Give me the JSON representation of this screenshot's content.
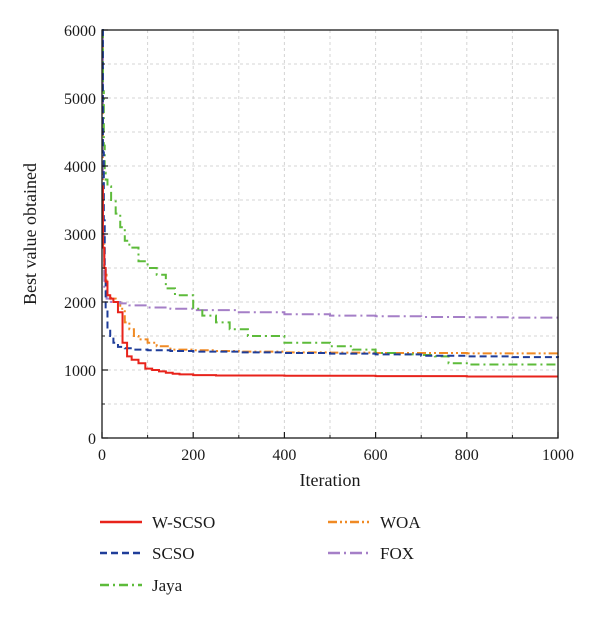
{
  "chart_data": {
    "type": "line",
    "title": "",
    "xlabel": "Iteration",
    "ylabel": "Best value obtained",
    "xlim": [
      0,
      1000
    ],
    "ylim": [
      0,
      6000
    ],
    "xticks": [
      0,
      200,
      400,
      600,
      800,
      1000
    ],
    "yticks": [
      0,
      1000,
      2000,
      3000,
      4000,
      5000,
      6000
    ],
    "grid": true,
    "legend_position": "bottom",
    "series": [
      {
        "name": "W-SCSO",
        "color": "#e8231b",
        "dash": "solid",
        "x": [
          0,
          2,
          5,
          8,
          12,
          18,
          25,
          35,
          45,
          55,
          65,
          80,
          95,
          110,
          125,
          140,
          155,
          170,
          200,
          250,
          300,
          400,
          500,
          600,
          700,
          800,
          900,
          1000
        ],
        "y": [
          3700,
          2800,
          2500,
          2300,
          2100,
          2050,
          2000,
          1850,
          1400,
          1200,
          1150,
          1100,
          1020,
          1000,
          980,
          960,
          945,
          935,
          925,
          920,
          920,
          915,
          915,
          910,
          910,
          905,
          905,
          905
        ]
      },
      {
        "name": "SCSO",
        "color": "#1f3d99",
        "dash": "dashed",
        "x": [
          0,
          2,
          4,
          6,
          8,
          12,
          18,
          25,
          35,
          50,
          70,
          100,
          150,
          200,
          300,
          400,
          500,
          600,
          700,
          800,
          900,
          1000
        ],
        "y": [
          6000,
          4200,
          3200,
          2500,
          1900,
          1600,
          1500,
          1400,
          1340,
          1320,
          1300,
          1290,
          1280,
          1270,
          1260,
          1250,
          1240,
          1230,
          1210,
          1200,
          1190,
          1180
        ]
      },
      {
        "name": "Jaya",
        "color": "#5dbb3a",
        "dash": "dashdot",
        "x": [
          0,
          2,
          4,
          6,
          8,
          12,
          20,
          30,
          40,
          50,
          60,
          80,
          100,
          120,
          140,
          160,
          180,
          200,
          220,
          250,
          280,
          320,
          400,
          500,
          550,
          600,
          650,
          700,
          730,
          760,
          800,
          900,
          1000
        ],
        "y": [
          6000,
          5100,
          4300,
          3900,
          3800,
          3700,
          3500,
          3300,
          3100,
          2900,
          2800,
          2600,
          2500,
          2400,
          2200,
          2100,
          2100,
          1900,
          1800,
          1700,
          1600,
          1500,
          1400,
          1350,
          1300,
          1250,
          1230,
          1220,
          1200,
          1100,
          1080,
          1080,
          1080
        ]
      },
      {
        "name": "WOA",
        "color": "#f08a24",
        "dash": "dashdotdot",
        "x": [
          0,
          2,
          5,
          10,
          20,
          30,
          40,
          50,
          60,
          70,
          80,
          100,
          120,
          150,
          200,
          250,
          300,
          400,
          500,
          600,
          700,
          800,
          900,
          1000
        ],
        "y": [
          6000,
          3000,
          2400,
          2100,
          2050,
          2000,
          1900,
          1700,
          1600,
          1500,
          1450,
          1400,
          1350,
          1300,
          1290,
          1280,
          1270,
          1260,
          1255,
          1250,
          1250,
          1245,
          1245,
          1240
        ]
      },
      {
        "name": "FOX",
        "color": "#a57fc7",
        "dash": "dashdotlong",
        "x": [
          0,
          2,
          5,
          10,
          20,
          40,
          60,
          100,
          150,
          200,
          300,
          400,
          500,
          600,
          700,
          800,
          900,
          1000
        ],
        "y": [
          6000,
          3000,
          2200,
          2050,
          2000,
          1980,
          1950,
          1920,
          1900,
          1880,
          1850,
          1820,
          1800,
          1790,
          1780,
          1775,
          1770,
          1770
        ]
      }
    ]
  }
}
